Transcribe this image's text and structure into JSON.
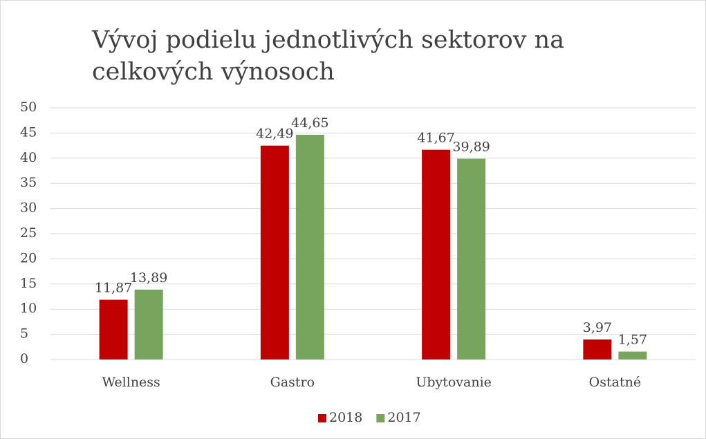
{
  "chart_data": {
    "type": "bar",
    "title": "Vývoj podielu jednotlivých sektorov na celkových výnosoch",
    "categories": [
      "Wellness",
      "Gastro",
      "Ubytovanie",
      "Ostatné"
    ],
    "series": [
      {
        "name": "2018",
        "color": "#c00000",
        "values": [
          11.87,
          42.49,
          41.67,
          3.97
        ],
        "value_labels": [
          "11,87",
          "42,49",
          "41,67",
          "3,97"
        ]
      },
      {
        "name": "2017",
        "color": "#77a55e",
        "values": [
          13.89,
          44.65,
          39.89,
          1.57
        ],
        "value_labels": [
          "13,89",
          "44,65",
          "39,89",
          "1,57"
        ]
      }
    ],
    "ylim": [
      0,
      50
    ],
    "yticks": [
      0,
      5,
      10,
      15,
      20,
      25,
      30,
      35,
      40,
      45,
      50
    ],
    "grid": true,
    "legend": "bottom"
  }
}
